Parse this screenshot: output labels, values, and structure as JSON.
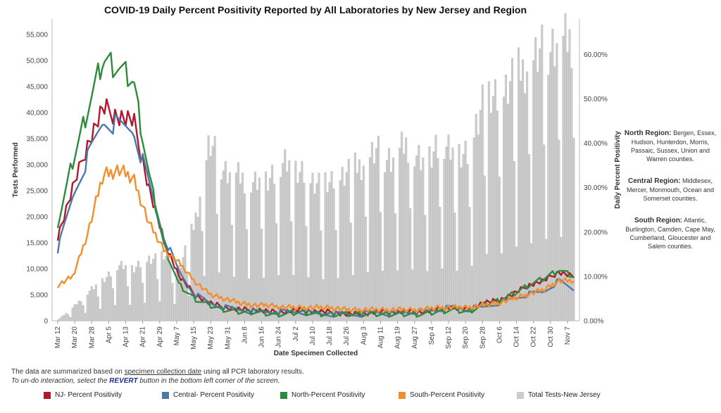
{
  "chart_data": {
    "type": "line",
    "title": "COVID-19 Daily Percent Positivity Reported by All Laboratories by New Jersey and Region",
    "xlabel": "Date Specimen Collected",
    "ylabel_left": "Tests Performed",
    "ylabel_right": "Daily Percent Positivity",
    "left_ticks": [
      "0",
      "5,000",
      "10,000",
      "15,000",
      "20,000",
      "25,000",
      "30,000",
      "35,000",
      "40,000",
      "45,000",
      "50,000",
      "55,000"
    ],
    "right_ticks": [
      "0.00%",
      "10.00%",
      "20.00%",
      "30.00%",
      "40.00%",
      "50.00%",
      "60.00%"
    ],
    "ylim_left": [
      0,
      58000
    ],
    "ylim_right": [
      0,
      68
    ],
    "x_tick_labels": [
      "Mar 12",
      "Mar 20",
      "Mar 28",
      "Apr 5",
      "Apr 13",
      "Apr 21",
      "Apr 29",
      "May 7",
      "May 15",
      "May 23",
      "May 31",
      "Jun 8",
      "Jun 16",
      "Jun 24",
      "Jul 2",
      "Jul 10",
      "Jul 18",
      "Jul 26",
      "Aug 3",
      "Aug 11",
      "Aug 19",
      "Aug 27",
      "Sep 4",
      "Sep 12",
      "Sep 20",
      "Sep 28",
      "Oct 6",
      "Oct 14",
      "Oct 22",
      "Oct 30",
      "Nov 7"
    ],
    "bar_series": {
      "name": "Total Tests-New Jersey",
      "color": "#cccccc",
      "weekly_values": [
        200,
        2500,
        5500,
        8000,
        10500,
        10000,
        12000,
        12500,
        10000,
        18500,
        34000,
        29000,
        27500,
        26500,
        28000,
        30000,
        28500,
        27000,
        26000,
        28500,
        30000,
        32500,
        31000,
        34000,
        30500,
        34000,
        32000,
        32000,
        43000,
        42000,
        47000,
        49000,
        52000,
        53500,
        54000
      ]
    },
    "series": [
      {
        "name": "NJ- Percent Positivity",
        "color": "#b2182b",
        "weekly_values": [
          19,
          30,
          40,
          48,
          46,
          45,
          30,
          18,
          10,
          6,
          4,
          3,
          2.5,
          2.5,
          2,
          2,
          2.5,
          2,
          2,
          1.5,
          1.5,
          2,
          2,
          2,
          2,
          2.5,
          3,
          2.5,
          4,
          4.5,
          6,
          8,
          9,
          11,
          10
        ]
      },
      {
        "name": "Central- Percent Positivity",
        "color": "#4e79a7",
        "weekly_values": [
          16,
          28,
          37,
          45,
          44,
          43,
          31,
          19,
          11,
          6,
          4,
          3,
          2.5,
          2,
          2,
          2,
          2,
          1.5,
          1.5,
          1.5,
          1.5,
          2,
          1.5,
          2,
          2,
          2.5,
          3,
          2.5,
          3,
          4,
          5,
          6,
          6.5,
          9,
          7
        ]
      },
      {
        "name": "North-Percent Positivity",
        "color": "#2e8b3e",
        "weekly_values": [
          22,
          36,
          48,
          59,
          57,
          54,
          33,
          17,
          8,
          5,
          3.5,
          2.5,
          2,
          2,
          1.5,
          1.5,
          2,
          1.5,
          1.5,
          1.5,
          1.5,
          1.5,
          1.5,
          1.5,
          1.5,
          2,
          2.5,
          2,
          3.5,
          4.5,
          6,
          8,
          9.5,
          11.5,
          10
        ]
      },
      {
        "name": "South-Percent Positivity",
        "color": "#f28e2b",
        "weekly_values": [
          8,
          10,
          20,
          33,
          34,
          32,
          22,
          16,
          13,
          9,
          6,
          5,
          4,
          3.5,
          3.5,
          3,
          3,
          3,
          3,
          2.5,
          2.5,
          2.5,
          2.5,
          2.5,
          2.5,
          3,
          3,
          3,
          3.5,
          4,
          5,
          6,
          7,
          9,
          9
        ]
      }
    ]
  },
  "regions": {
    "north": {
      "label": "North Region:",
      "text": "Bergen, Essex, Hudson, Hunterdon, Morris, Passaic, Sussex, Union and Warren counties."
    },
    "central": {
      "label": "Central Region:",
      "text": "Middlesex, Mercer, Monmouth, Ocean and Somerset counties."
    },
    "south": {
      "label": "South Region:",
      "text": "Atlantic, Burlington, Camden, Cape May, Cumberland, Gloucester and Salem counties."
    }
  },
  "footnote": {
    "line1_pre": "The data are summarized based on ",
    "line1_link": "specimen collection date",
    "line1_post": " using all PCR laboratory results.",
    "line2_pre": "To un-do interaction, select the ",
    "line2_revert": "REVERT",
    "line2_post": " button in the bottom left corner of the screen."
  },
  "legend": [
    {
      "label": "NJ- Percent Positivity",
      "color": "#b2182b"
    },
    {
      "label": "Central- Percent Positivity",
      "color": "#4e79a7"
    },
    {
      "label": "North-Percent Positivity",
      "color": "#2e8b3e"
    },
    {
      "label": "South-Percent Positivity",
      "color": "#f28e2b"
    },
    {
      "label": "Total Tests-New Jersey",
      "color": "#cccccc"
    }
  ]
}
